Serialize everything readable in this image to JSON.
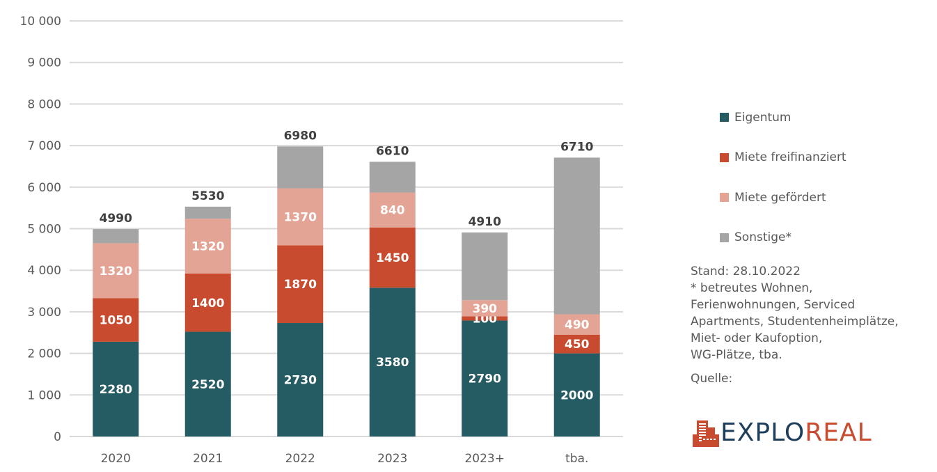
{
  "chart_data": {
    "type": "bar",
    "stacked": true,
    "title": "",
    "xlabel": "",
    "ylabel": "",
    "ylim": [
      0,
      10000
    ],
    "yticks": [
      0,
      1000,
      2000,
      3000,
      4000,
      5000,
      6000,
      7000,
      8000,
      9000,
      10000
    ],
    "ytick_labels": [
      "0",
      "1 000",
      "2 000",
      "3 000",
      "4 000",
      "5 000",
      "6 000",
      "7 000",
      "8 000",
      "9 000",
      "10 000"
    ],
    "grid": true,
    "legend_position": "right",
    "categories": [
      "2020",
      "2021",
      "2022",
      "2023",
      "2023+",
      "tba."
    ],
    "series": [
      {
        "name": "Eigentum",
        "color": "#255c63",
        "values": [
          2280,
          2520,
          2730,
          3580,
          2790,
          2000
        ],
        "labels_shown": true
      },
      {
        "name": "Miete freifinanziert",
        "color": "#c84b2f",
        "values": [
          1050,
          1400,
          1870,
          1450,
          100,
          450
        ],
        "labels_shown": true
      },
      {
        "name": "Miete gefördert",
        "color": "#e3a496",
        "values": [
          1320,
          1320,
          1370,
          840,
          390,
          490
        ],
        "labels_shown": true
      },
      {
        "name": "Sonstige*",
        "color": "#a5a5a5",
        "values": [
          340,
          290,
          1010,
          740,
          1630,
          3770
        ],
        "labels_shown": false
      }
    ],
    "totals": [
      4990,
      5530,
      6980,
      6610,
      4910,
      6710
    ]
  },
  "notes": {
    "stand": "Stand: 28.10.2022",
    "footnote_lines": [
      "*  betreutes Wohnen,",
      "Ferienwohnungen, Serviced",
      "Apartments, Studentenheimplätze,",
      "Miet- oder Kaufoption,",
      "WG-Plätze, tba."
    ],
    "source_label": "Quelle:"
  },
  "logo": {
    "part1": "EXPLO",
    "part2": "REAL",
    "icon": "building-icon",
    "color_primary": "#1e3f5c",
    "color_accent": "#c84b2f"
  }
}
